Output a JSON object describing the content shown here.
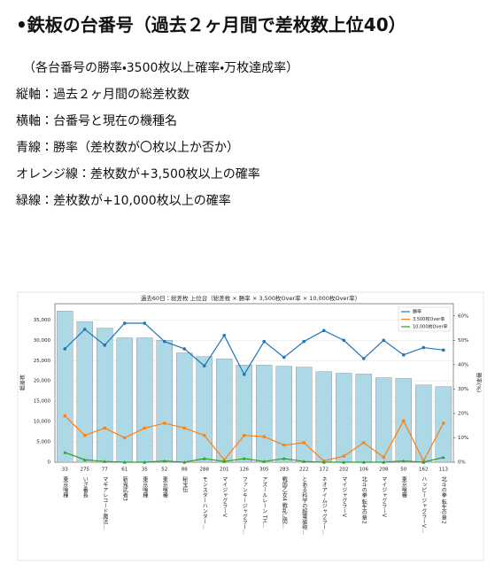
{
  "header": {
    "title": "•鉄板の台番号（過去２ヶ月間で差枚数上位40）"
  },
  "notes": [
    "（各台番号の勝率・3500枚以上確率・万枚達成率）",
    "縦軸：過去２ヶ月間の総差枚数",
    "横軸：台番号と現在の機種名",
    "青線：勝率（差枚数が〇枚以上か否か）",
    "オレンジ線：差枚数が+3,500枚以上の確率",
    "緑線：差枚数が+10,000枚以上の確率"
  ],
  "chart_data": {
    "type": "bar",
    "title": "過去60日：総差枚 上位台（総差枚 × 勝率 × 3,500枚Over率 × 10,000枚Over率）",
    "y_label": "総差枚",
    "y2_label": "勝率(%)",
    "categories": [
      "33",
      "275",
      "77",
      "61",
      "35",
      "52",
      "88",
      "288",
      "201",
      "126",
      "305",
      "283",
      "222",
      "172",
      "202",
      "106",
      "208",
      "50",
      "162",
      "113"
    ],
    "machine_names": [
      "東京喰種",
      "いざ番長",
      "マギアレコード魔法…",
      "新鬼武者3",
      "東京喰種",
      "東京喰種",
      "秘宝伝",
      "モンスターハンター…",
      "マイジャグラーV",
      "ファンキージャグラー…",
      "アズールレーン TH…",
      "戦国乙女4 戦乱に閃…",
      "とある科学の超電磁砲…",
      "ネオアイムジャグラー…",
      "マイジャグラーV",
      "北斗の拳 転生の章2",
      "マイジャグラーV",
      "東京喰種",
      "ハッピージャグラーV…",
      "北斗の拳 転生の章2"
    ],
    "values": [
      37200,
      34600,
      33000,
      30600,
      30600,
      30000,
      26900,
      26000,
      25400,
      23900,
      23900,
      23600,
      23400,
      22300,
      21900,
      21700,
      20800,
      20600,
      19000,
      18600
    ],
    "color": "#add8e6",
    "series": [
      {
        "name": "勝率",
        "color": "#1f77b4",
        "axis": "y2",
        "values": [
          46.5,
          54.5,
          48,
          57,
          57,
          49.5,
          46.5,
          39.5,
          52,
          36,
          49.5,
          43,
          49.5,
          54,
          50,
          42.5,
          50,
          44,
          47,
          46
        ]
      },
      {
        "name": "3,500枚Over率",
        "color": "#ff7f0e",
        "axis": "y2",
        "values": [
          19,
          11,
          14,
          10,
          14,
          16,
          14,
          11,
          1,
          11,
          10.5,
          7,
          8,
          0.5,
          2.5,
          8,
          2,
          17,
          0.5,
          16
        ]
      },
      {
        "name": "10,000枚Over率",
        "color": "#2ca02c",
        "axis": "y2",
        "values": [
          4,
          1,
          0.3,
          0,
          0,
          0.5,
          0,
          1.5,
          0.3,
          1.5,
          0.3,
          1.5,
          0.3,
          0,
          0,
          0,
          0,
          0.5,
          0,
          2
        ]
      }
    ],
    "ylim": [
      0,
      39000
    ],
    "yticks": [
      0,
      {
        "value": 5000,
        "label": "5,000"
      },
      {
        "value": 10000,
        "label": "10,000"
      },
      {
        "value": 15000,
        "label": "15,000"
      },
      {
        "value": 20000,
        "label": "20,000"
      },
      {
        "value": 25000,
        "label": "25,000"
      },
      {
        "value": 30000,
        "label": "30,000"
      },
      {
        "value": 35000,
        "label": "35,000"
      }
    ],
    "y2lim": [
      0,
      65
    ],
    "y2ticks": [
      {
        "value": 0,
        "label": "0%"
      },
      {
        "value": 10,
        "label": "10%"
      },
      {
        "value": 20,
        "label": "20%"
      },
      {
        "value": 30,
        "label": "30%"
      },
      {
        "value": 40,
        "label": "40%"
      },
      {
        "value": 50,
        "label": "50%"
      },
      {
        "value": 60,
        "label": "60%"
      }
    ],
    "grid": true,
    "legend": "top-right"
  }
}
